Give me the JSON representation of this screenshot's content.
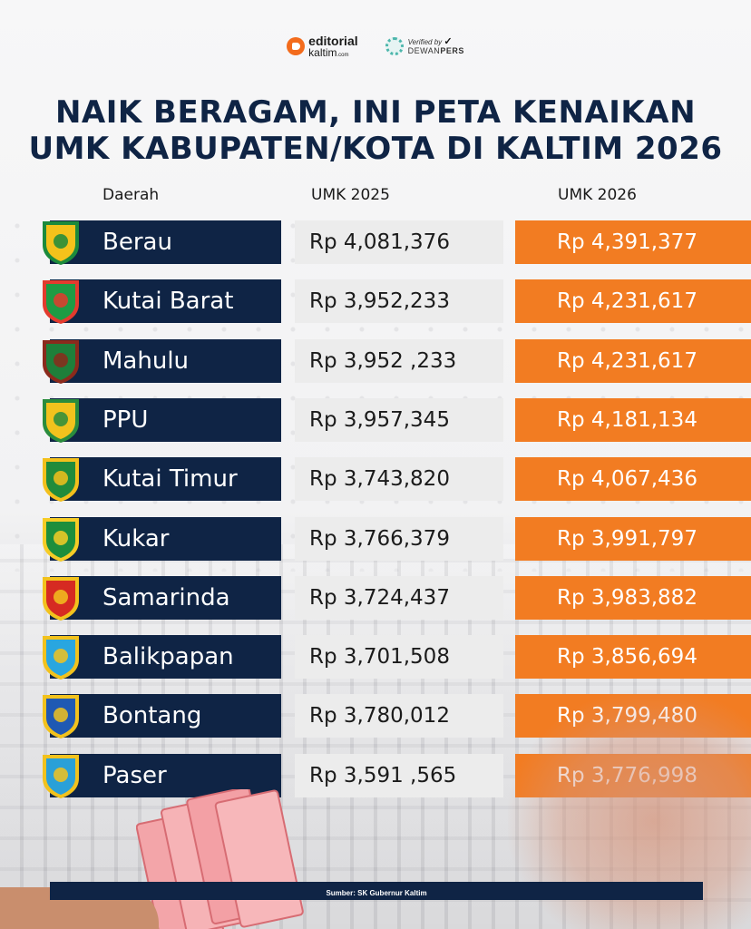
{
  "header": {
    "brand_line1": "editorial",
    "brand_line2": "kaltim",
    "brand_suffix": ".com",
    "verified_line1": "Verified by",
    "verified_line2_a": "DEWAN",
    "verified_line2_b": "PERS"
  },
  "chart_data": {
    "type": "table",
    "title_line1": "NAIK BERAGAM, INI PETA KENAIKAN",
    "title_line2": "UMK KABUPATEN/KOTA DI KALTIM 2026",
    "columns": [
      "Daerah",
      "UMK 2025",
      "UMK 2026"
    ],
    "rows": [
      {
        "region": "Berau",
        "umk2025": "Rp 4,081,376",
        "umk2026": "Rp 4,391,377"
      },
      {
        "region": "Kutai Barat",
        "umk2025": "Rp 3,952,233",
        "umk2026": "Rp 4,231,617"
      },
      {
        "region": "Mahulu",
        "umk2025": "Rp 3,952 ,233",
        "umk2026": "Rp 4,231,617"
      },
      {
        "region": "PPU",
        "umk2025": "Rp 3,957,345",
        "umk2026": "Rp 4,181,134"
      },
      {
        "region": "Kutai Timur",
        "umk2025": "Rp 3,743,820",
        "umk2026": "Rp 4,067,436"
      },
      {
        "region": "Kukar",
        "umk2025": "Rp 3,766,379",
        "umk2026": "Rp 3,991,797"
      },
      {
        "region": "Samarinda",
        "umk2025": "Rp 3,724,437",
        "umk2026": "Rp 3,983,882"
      },
      {
        "region": "Balikpapan",
        "umk2025": "Rp 3,701,508",
        "umk2026": "Rp 3,856,694"
      },
      {
        "region": "Bontang",
        "umk2025": "Rp 3,780,012",
        "umk2026": "Rp 3,799,480"
      },
      {
        "region": "Paser",
        "umk2025": "Rp 3,591 ,565",
        "umk2026": "Rp 3,776,998"
      }
    ],
    "source": "Sumber: SK Gubernur Kaltim"
  },
  "emblems": [
    {
      "icon": "berau-emblem-icon",
      "colors": [
        "#f4c21b",
        "#1c8a3c"
      ]
    },
    {
      "icon": "kutai-barat-emblem-icon",
      "colors": [
        "#1e9c44",
        "#e33b2e"
      ]
    },
    {
      "icon": "mahulu-emblem-icon",
      "colors": [
        "#1e7f3a",
        "#8b2a1c"
      ]
    },
    {
      "icon": "ppu-emblem-icon",
      "colors": [
        "#f2c21d",
        "#2a8c3d"
      ]
    },
    {
      "icon": "kutai-timur-emblem-icon",
      "colors": [
        "#218b3b",
        "#f3c01c"
      ]
    },
    {
      "icon": "kukar-emblem-icon",
      "colors": [
        "#1d8e3c",
        "#f6cc26"
      ]
    },
    {
      "icon": "samarinda-emblem-icon",
      "colors": [
        "#d62a22",
        "#f2c21d"
      ]
    },
    {
      "icon": "balikpapan-emblem-icon",
      "colors": [
        "#29a6e0",
        "#f2c21d"
      ]
    },
    {
      "icon": "bontang-emblem-icon",
      "colors": [
        "#1f59b3",
        "#f2c21d"
      ]
    },
    {
      "icon": "paser-emblem-icon",
      "colors": [
        "#2aa0d8",
        "#f2c21d"
      ]
    }
  ],
  "colors": {
    "navy": "#0f2445",
    "orange": "#f27c22",
    "gray": "#ececec"
  }
}
